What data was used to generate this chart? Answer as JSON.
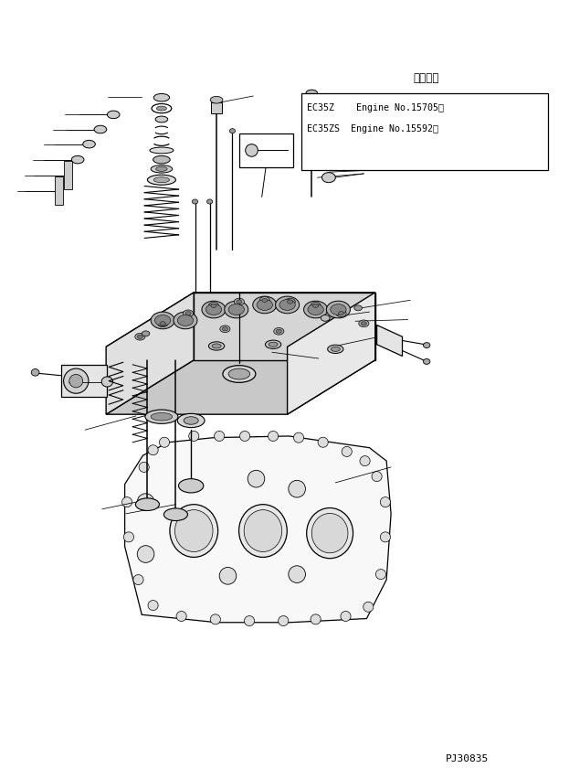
{
  "bg_color": "#ffffff",
  "line_color": "#000000",
  "fig_width": 6.23,
  "fig_height": 8.52,
  "dpi": 100,
  "text_box_title": "適用号機",
  "text_line1": "EC35Z    Engine No.15705～",
  "text_line2": "EC35ZS  Engine No.15592～",
  "part_number": "PJ30835"
}
